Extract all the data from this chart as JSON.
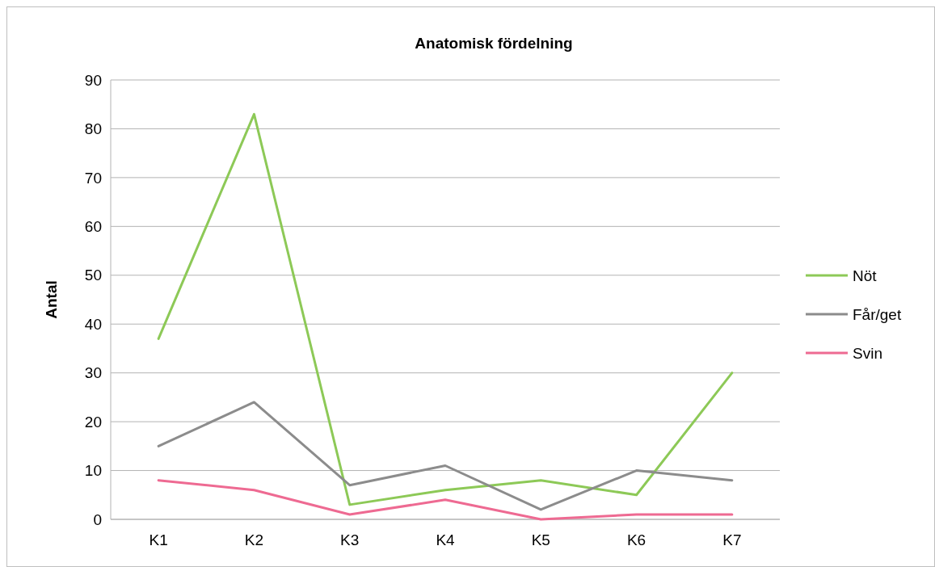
{
  "chart_data": {
    "type": "line",
    "title": "Anatomisk fördelning",
    "ylabel": "Antal",
    "categories": [
      "K1",
      "K2",
      "K3",
      "K4",
      "K5",
      "K6",
      "K7"
    ],
    "series": [
      {
        "name": "Nöt",
        "color": "#8dc957",
        "values": [
          37,
          83,
          3,
          6,
          8,
          5,
          30
        ]
      },
      {
        "name": "Får/get",
        "color": "#8c8c8c",
        "values": [
          15,
          24,
          7,
          11,
          2,
          10,
          8
        ]
      },
      {
        "name": "Svin",
        "color": "#ee6a92",
        "values": [
          8,
          6,
          1,
          4,
          0,
          1,
          1
        ]
      }
    ],
    "ylim": [
      0,
      90
    ],
    "yticks": [
      0,
      10,
      20,
      30,
      40,
      50,
      60,
      70,
      80,
      90
    ],
    "grid": "y",
    "legend": "right",
    "marker": "none",
    "line_style": "solid"
  }
}
